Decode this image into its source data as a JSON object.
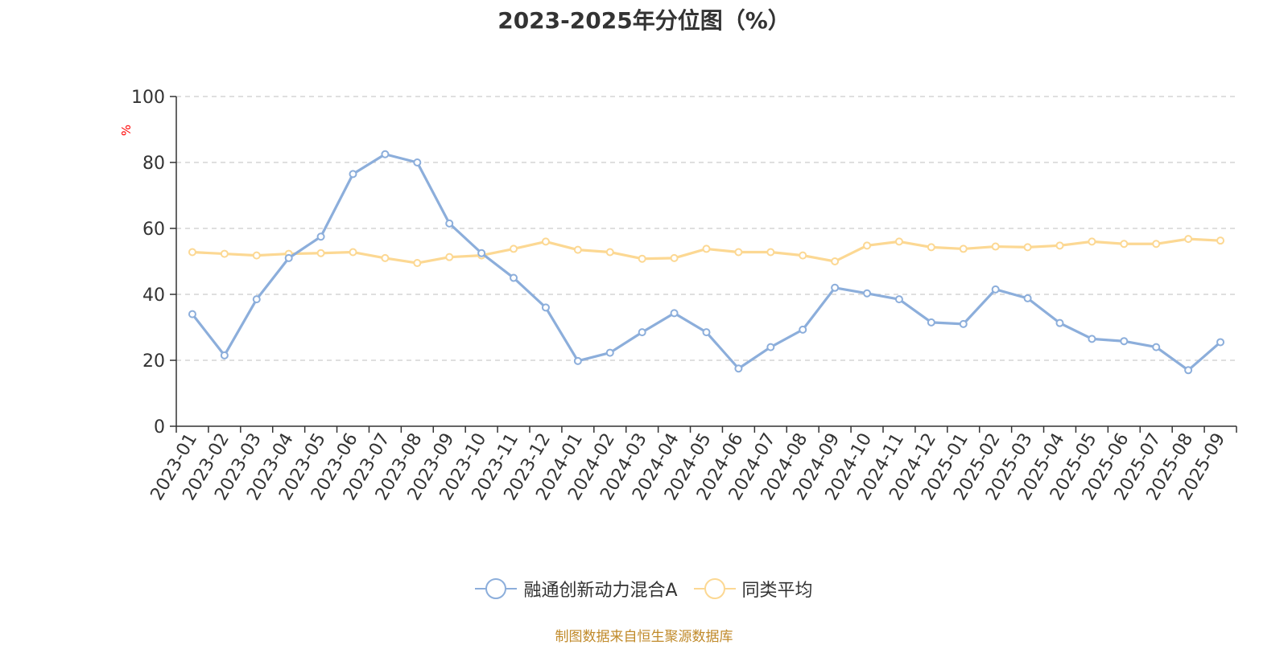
{
  "title": "2023-2025年分位图（%）",
  "source": "制图数据来自恒生聚源数据库",
  "colors": {
    "series1": "#8caedb",
    "series2": "#fcd893",
    "axis": "#333333",
    "grid": "#cccccc",
    "unit": "#ff0000",
    "source": "#c08a2a"
  },
  "chart_data": {
    "type": "line",
    "ylabel": "%",
    "ylim": [
      0,
      100
    ],
    "yticks": [
      0,
      20,
      40,
      60,
      80,
      100
    ],
    "grid": "horizontal dashed",
    "legend_position": "bottom-center",
    "categories": [
      "2023-01",
      "2023-02",
      "2023-03",
      "2023-04",
      "2023-05",
      "2023-06",
      "2023-07",
      "2023-08",
      "2023-09",
      "2023-10",
      "2023-11",
      "2023-12",
      "2024-01",
      "2024-02",
      "2024-03",
      "2024-04",
      "2024-05",
      "2024-06",
      "2024-07",
      "2024-08",
      "2024-09",
      "2024-10",
      "2024-11",
      "2024-12",
      "2025-01",
      "2025-02",
      "2025-03",
      "2025-04",
      "2025-05",
      "2025-06",
      "2025-07",
      "2025-08",
      "2025-09"
    ],
    "series": [
      {
        "name": "融通创新动力混合A",
        "values": [
          34.0,
          21.5,
          38.5,
          51.0,
          57.5,
          76.5,
          82.5,
          80.0,
          61.5,
          52.5,
          45.0,
          36.0,
          19.8,
          22.3,
          28.5,
          34.3,
          28.5,
          17.5,
          24.0,
          29.3,
          42.0,
          40.3,
          38.5,
          31.5,
          31.0,
          41.5,
          38.8,
          31.3,
          26.5,
          25.8,
          24.0,
          17.0,
          25.5
        ]
      },
      {
        "name": "同类平均",
        "values": [
          52.8,
          52.3,
          51.8,
          52.3,
          52.5,
          52.8,
          51.0,
          49.5,
          51.3,
          51.8,
          53.8,
          56.0,
          53.5,
          52.8,
          50.8,
          51.0,
          53.8,
          52.8,
          52.8,
          51.8,
          50.0,
          54.8,
          56.0,
          54.3,
          53.8,
          54.5,
          54.3,
          54.8,
          56.0,
          55.3,
          55.3,
          56.8,
          56.3
        ]
      }
    ]
  }
}
